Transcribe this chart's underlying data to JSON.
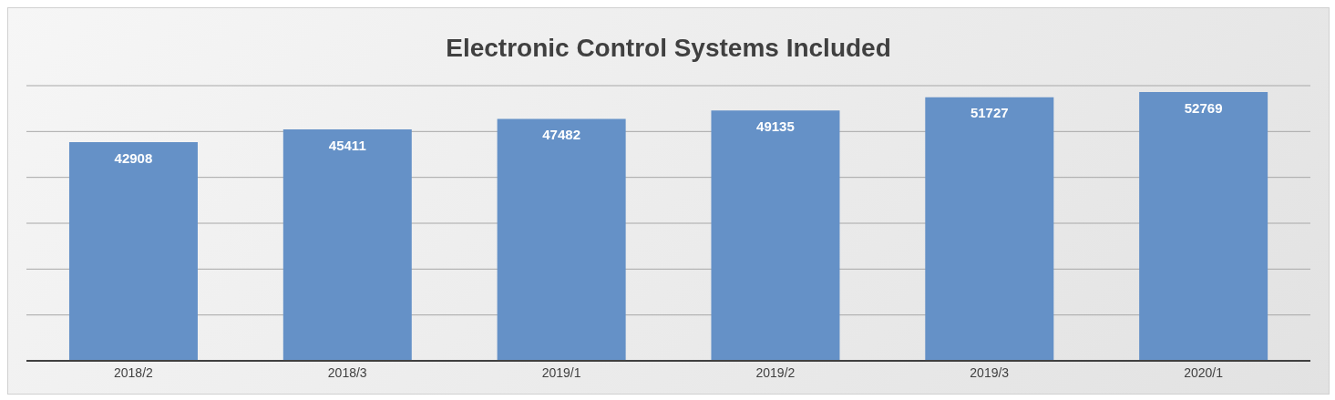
{
  "chart_data": {
    "type": "bar",
    "title": "Electronic Control Systems Included",
    "categories": [
      "2018/2",
      "2018/3",
      "2019/1",
      "2019/2",
      "2019/3",
      "2020/1"
    ],
    "values": [
      42908,
      45411,
      47482,
      49135,
      51727,
      52769
    ],
    "color": "#6591c7",
    "tick_labels": "x",
    "grid": "y",
    "data_labels": true
  }
}
